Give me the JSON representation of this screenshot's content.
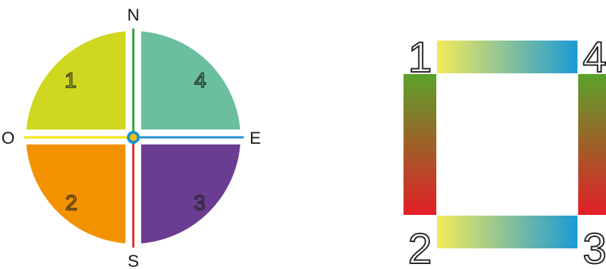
{
  "compass": {
    "north": "N",
    "south": "S",
    "east": "E",
    "west": "O",
    "quadrants": [
      {
        "label": "1",
        "color": "#cfd81e"
      },
      {
        "label": "4",
        "color": "#6bbf9e"
      },
      {
        "label": "2",
        "color": "#f39200"
      },
      {
        "label": "3",
        "color": "#6a3d93"
      }
    ],
    "axis_colors": {
      "north": "#2e9b3a",
      "south": "#e2232a",
      "east": "#1d8fd3",
      "west": "#f2e600"
    },
    "center_colors": {
      "ring": "#1d8fd3",
      "dot": "#f2c200"
    }
  },
  "square": {
    "corners": {
      "top_left": "1",
      "top_right": "4",
      "bottom_left": "2",
      "bottom_right": "3"
    },
    "gradients": {
      "horizontal": [
        "#f5ea5a",
        "#1b9ad6"
      ],
      "vertical": [
        "#5aa32b",
        "#e21e26"
      ]
    }
  }
}
